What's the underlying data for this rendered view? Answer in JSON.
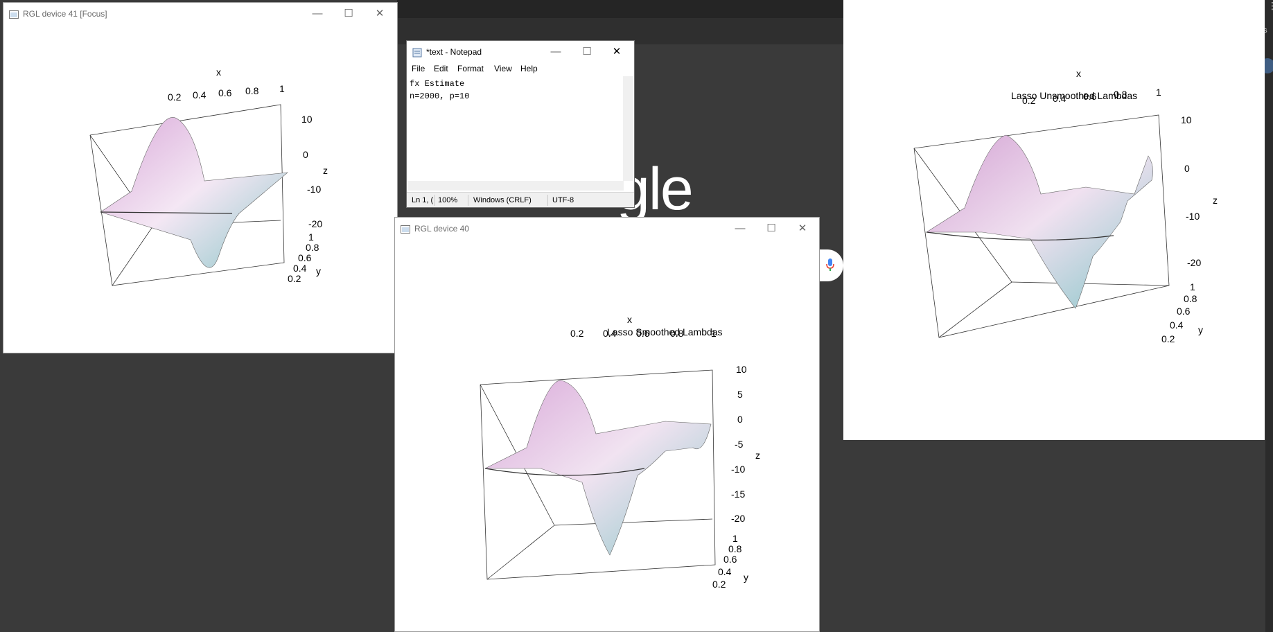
{
  "background": {
    "google_partial_text": "gle"
  },
  "right_edge": {
    "partial_text": "rks"
  },
  "rgl_left": {
    "title": "RGL device 41 [Focus]",
    "axes": {
      "x_label": "x",
      "y_label": "y",
      "z_label": "z",
      "x_ticks": [
        "0.2",
        "0.4",
        "0.6",
        "0.8",
        "1"
      ],
      "y_ticks": [
        "1",
        "0.8",
        "0.6",
        "0.4",
        "0.2"
      ],
      "z_ticks": [
        "10",
        "0",
        "-10",
        "-20"
      ]
    }
  },
  "rgl_bottom": {
    "title": "RGL device 40",
    "plot_title": "Lasso Smoothed Lambdas",
    "axes": {
      "x_label": "x",
      "y_label": "y",
      "z_label": "z",
      "x_ticks": [
        "0.2",
        "0.4",
        "0.6",
        "0.8",
        "1"
      ],
      "y_ticks": [
        "1",
        "0.8",
        "0.6",
        "0.4",
        "0.2"
      ],
      "z_ticks": [
        "10",
        "5",
        "0",
        "-5",
        "-10",
        "-15",
        "-20"
      ]
    }
  },
  "rgl_right": {
    "plot_title": "Lasso Unsmoothed Lambdas",
    "axes": {
      "x_label": "x",
      "y_label": "y",
      "z_label": "z",
      "x_ticks": [
        "0.2",
        "0.4",
        "0.6",
        "0.8",
        "1"
      ],
      "y_ticks": [
        "1",
        "0.8",
        "0.6",
        "0.4",
        "0.2"
      ],
      "z_ticks": [
        "10",
        "0",
        "-10",
        "-20"
      ]
    }
  },
  "notepad": {
    "title": "*text - Notepad",
    "menu": [
      "File",
      "Edit",
      "Format",
      "View",
      "Help"
    ],
    "lines": [
      "fx Estimate",
      "n=2000, p=10"
    ],
    "status": {
      "position": "Ln 1, (",
      "zoom": "100%",
      "line_ending": "Windows (CRLF)",
      "encoding": "UTF-8"
    }
  }
}
